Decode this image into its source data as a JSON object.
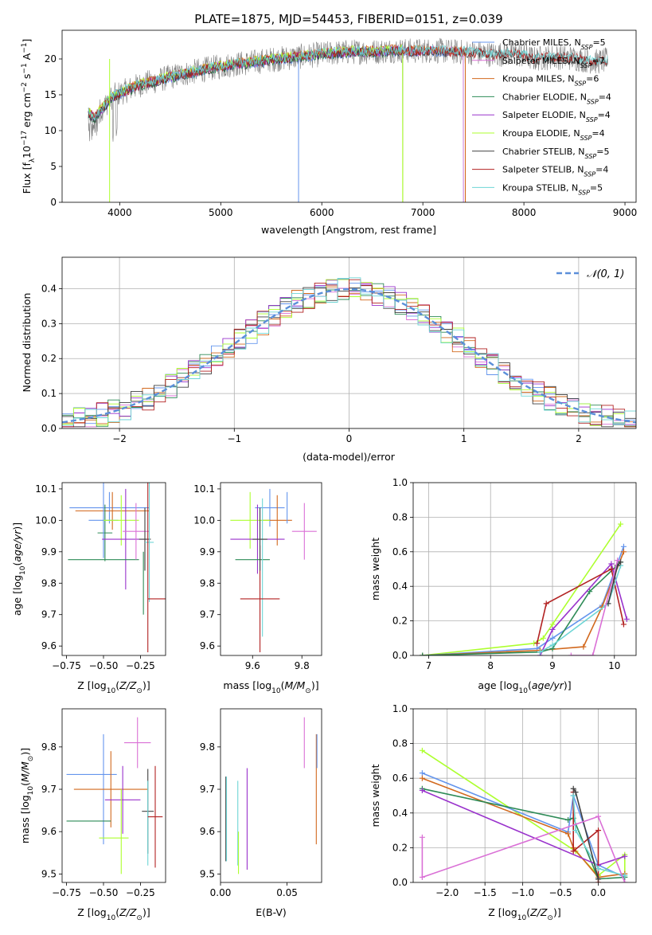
{
  "page": {
    "title": "PLATE=1875, MJD=54453, FIBERID=0151, z=0.039"
  },
  "chart_data": [
    {
      "id": "spectrum",
      "type": "line",
      "title": "PLATE=1875, MJD=54453, FIBERID=0151, z=0.039",
      "xlabel": "wavelength [Angstrom, rest frame]",
      "ylabel": "Flux [f_λ 10^-17 erg cm^-2 s^-1 A^-1]",
      "xlim": [
        3430,
        9110
      ],
      "ylim": [
        0,
        24
      ],
      "xticks": [
        4000,
        5000,
        6000,
        7000,
        8000,
        9000
      ],
      "yticks": [
        0,
        5,
        10,
        15,
        20
      ],
      "observed": {
        "x": [
          3690,
          3750,
          3850,
          3930,
          4000,
          4100,
          4200,
          4350,
          4500,
          4700,
          4900,
          5100,
          5300,
          5500,
          5700,
          5900,
          6100,
          6300,
          6500,
          6700,
          6900,
          7100,
          7300,
          7500,
          7700,
          7900,
          8100,
          8300,
          8500,
          8700,
          8830
        ],
        "y": [
          12.5,
          11.8,
          13.5,
          14.8,
          15.2,
          15.8,
          16.4,
          16.9,
          17.5,
          18.1,
          18.7,
          19.2,
          19.5,
          19.9,
          20.2,
          20.5,
          20.8,
          21.0,
          21.0,
          21.2,
          21.1,
          21.2,
          21.0,
          20.9,
          20.6,
          20.8,
          20.0,
          20.3,
          20.1,
          19.6,
          19.8
        ]
      },
      "model_x": [
        3690,
        3750,
        3850,
        3930,
        4000,
        4100,
        4200,
        4350,
        4500,
        4700,
        4900,
        5100,
        5300,
        5500,
        5700,
        5900,
        6100,
        6300,
        6500,
        6700,
        6900,
        7100,
        7300,
        7500
      ],
      "series": [
        {
          "name": "Chabrier MILES, N_SSP=5",
          "color": "#6495ED",
          "xmax": 7400
        },
        {
          "name": "Salpeter MILES, N_SSP=7",
          "color": "#DA70D6",
          "xmax": 7400
        },
        {
          "name": "Kroupa MILES, N_SSP=6",
          "color": "#D2691E",
          "xmax": 7420
        },
        {
          "name": "Chabrier ELODIE, N_SSP=4",
          "color": "#2E8B57",
          "xmax": 6800
        },
        {
          "name": "Salpeter ELODIE, N_SSP=4",
          "color": "#9932CC",
          "xmax": 6800
        },
        {
          "name": "Kroupa ELODIE, N_SSP=4",
          "color": "#ADFF2F",
          "xmax": 6800
        },
        {
          "name": "Chabrier STELIB, N_SSP=5",
          "color": "#404040",
          "xmax": 8830
        },
        {
          "name": "Salpeter STELIB, N_SSP=4",
          "color": "#B22222",
          "xmax": 8830
        },
        {
          "name": "Kroupa STELIB, N_SSP=5",
          "color": "#6ED5D5",
          "xmax": 8830
        }
      ]
    },
    {
      "id": "residuals",
      "type": "histogram",
      "xlabel": "(data-model)/error",
      "ylabel": "Normed distribution",
      "xlim": [
        -2.5,
        2.5
      ],
      "ylim": [
        0,
        0.49
      ],
      "xticks": [
        -2,
        -1,
        0,
        1,
        2
      ],
      "yticks": [
        0.0,
        0.1,
        0.2,
        0.3,
        0.4
      ],
      "legend": {
        "label": "N(0,1)",
        "position": "top-right",
        "color": "#5B8FD9"
      },
      "grid": true
    },
    {
      "id": "age-vs-Z",
      "type": "errorbar",
      "xlabel": "Z [log10(Z/Z⊙)]",
      "ylabel": "age  [log10(age/yr)]",
      "xlim": [
        -0.78,
        -0.08
      ],
      "ylim": [
        9.57,
        10.12
      ],
      "xticks": [
        -0.75,
        -0.5,
        -0.25
      ],
      "yticks": [
        9.6,
        9.7,
        9.8,
        9.9,
        10.0,
        10.1
      ],
      "points": [
        {
          "x": -0.46,
          "y": 10.04,
          "xerr": 0.27,
          "yerr": 0.05,
          "color": "#6495ED"
        },
        {
          "x": -0.44,
          "y": 10.03,
          "xerr": 0.25,
          "yerr": 0.06,
          "color": "#D2691E"
        },
        {
          "x": -0.49,
          "y": 9.96,
          "xerr": 0.05,
          "yerr": 0.09,
          "color": "#2E8B57"
        },
        {
          "x": -0.5,
          "y": 10.0,
          "xerr": 0.1,
          "yerr": 0.12,
          "color": "#6495ED"
        },
        {
          "x": -0.38,
          "y": 10.0,
          "xerr": 0.12,
          "yerr": 0.08,
          "color": "#ADFF2F"
        },
        {
          "x": -0.35,
          "y": 9.94,
          "xerr": 0.16,
          "yerr": 0.16,
          "color": "#9932CC"
        },
        {
          "x": -0.5,
          "y": 9.875,
          "xerr": 0.24,
          "yerr": 0.0,
          "color": "#2E8B57"
        },
        {
          "x": -0.28,
          "y": 9.965,
          "xerr": 0.09,
          "yerr": 0.09,
          "color": "#DA70D6"
        },
        {
          "x": -0.22,
          "y": 9.94,
          "xerr": 0.04,
          "yerr": 0.1,
          "color": "#404040"
        },
        {
          "x": -0.19,
          "y": 9.93,
          "xerr": 0.03,
          "yerr": 0.19,
          "color": "#6ED5D5"
        },
        {
          "x": -0.2,
          "y": 9.85,
          "xerr": 0.0,
          "yerr": 0.27,
          "color": "#B22222"
        },
        {
          "x": -0.14,
          "y": 9.75,
          "xerr": 0.06,
          "yerr": 0.0,
          "color": "#B22222"
        },
        {
          "x": -0.23,
          "y": 9.8,
          "xerr": 0.0,
          "yerr": 0.1,
          "color": "#2E8B57"
        }
      ]
    },
    {
      "id": "age-vs-mass",
      "type": "errorbar",
      "xlabel": "mass [log10(M/M⊙)]",
      "ylabel": "",
      "xlim": [
        9.47,
        9.88
      ],
      "ylim": [
        9.57,
        10.12
      ],
      "xticks": [
        9.6,
        9.8
      ],
      "yticks": [
        9.6,
        9.7,
        9.8,
        9.9,
        10.0,
        10.1
      ],
      "points": [
        {
          "x": 9.67,
          "y": 10.04,
          "xerr": 0.06,
          "yerr": 0.06,
          "color": "#6495ED"
        },
        {
          "x": 9.7,
          "y": 10.0,
          "xerr": 0.06,
          "yerr": 0.08,
          "color": "#D2691E"
        },
        {
          "x": 9.59,
          "y": 10.0,
          "xerr": 0.08,
          "yerr": 0.09,
          "color": "#ADFF2F"
        },
        {
          "x": 9.62,
          "y": 9.94,
          "xerr": 0.11,
          "yerr": 0.11,
          "color": "#9932CC"
        },
        {
          "x": 9.6,
          "y": 9.875,
          "xerr": 0.07,
          "yerr": 0.0,
          "color": "#2E8B57"
        },
        {
          "x": 9.81,
          "y": 9.965,
          "xerr": 0.05,
          "yerr": 0.09,
          "color": "#DA70D6"
        },
        {
          "x": 9.74,
          "y": 10.04,
          "xerr": 0.0,
          "yerr": 0.05,
          "color": "#6495ED"
        },
        {
          "x": 9.64,
          "y": 9.85,
          "xerr": 0.0,
          "yerr": 0.22,
          "color": "#6ED5D5"
        },
        {
          "x": 9.63,
          "y": 9.75,
          "xerr": 0.08,
          "yerr": 0.17,
          "color": "#B22222"
        },
        {
          "x": 9.63,
          "y": 9.94,
          "xerr": 0.03,
          "yerr": 0.1,
          "color": "#404040"
        }
      ]
    },
    {
      "id": "massweight-vs-age",
      "type": "line",
      "xlabel": "age  [log10(age/yr)]",
      "ylabel": "mass weight",
      "xlim": [
        6.75,
        10.35
      ],
      "ylim": [
        0.0,
        1.0
      ],
      "xticks": [
        7,
        8,
        9,
        10
      ],
      "yticks": [
        0.0,
        0.2,
        0.4,
        0.6,
        0.8,
        1.0
      ],
      "grid": true,
      "series": [
        {
          "color": "#ADFF2F",
          "x": [
            6.9,
            8.7,
            8.85,
            9.0,
            10.1
          ],
          "y": [
            0.0,
            0.07,
            0.1,
            0.18,
            0.76
          ]
        },
        {
          "color": "#6495ED",
          "x": [
            6.9,
            8.75,
            9.0,
            9.8,
            10.15
          ],
          "y": [
            0.0,
            0.04,
            0.1,
            0.29,
            0.63
          ]
        },
        {
          "color": "#D2691E",
          "x": [
            6.9,
            8.8,
            9.5,
            9.8,
            10.15
          ],
          "y": [
            0.0,
            0.03,
            0.05,
            0.28,
            0.6
          ]
        },
        {
          "color": "#2E8B57",
          "x": [
            6.9,
            8.8,
            9.0,
            9.6,
            10.1
          ],
          "y": [
            0.0,
            0.02,
            0.04,
            0.37,
            0.54
          ]
        },
        {
          "color": "#9932CC",
          "x": [
            8.8,
            9.0,
            9.95,
            10.2
          ],
          "y": [
            0.0,
            0.15,
            0.53,
            0.21
          ]
        },
        {
          "color": "#B22222",
          "x": [
            8.75,
            8.9,
            9.95,
            10.15
          ],
          "y": [
            0.07,
            0.3,
            0.5,
            0.18
          ]
        },
        {
          "color": "#6ED5D5",
          "x": [
            8.8,
            9.0,
            9.9,
            10.1
          ],
          "y": [
            0.02,
            0.06,
            0.3,
            0.52
          ]
        },
        {
          "color": "#404040",
          "x": [
            9.9,
            10.05,
            10.1
          ],
          "y": [
            0.3,
            0.52,
            0.54
          ]
        },
        {
          "color": "#DA70D6",
          "x": [
            9.3,
            9.65,
            10.05
          ],
          "y": [
            0.0,
            0.0,
            0.55
          ]
        }
      ]
    },
    {
      "id": "mass-vs-Z",
      "type": "errorbar",
      "xlabel": "Z [log10(Z/Z⊙)]",
      "ylabel": "mass [log10(M/M⊙)]",
      "xlim": [
        -0.78,
        -0.08
      ],
      "ylim": [
        9.48,
        9.89
      ],
      "xticks": [
        -0.75,
        -0.5,
        -0.25
      ],
      "yticks": [
        9.5,
        9.6,
        9.7,
        9.8
      ],
      "points": [
        {
          "x": -0.5,
          "y": 9.7,
          "xerr": 0.0,
          "yerr": 0.13,
          "color": "#6495ED"
        },
        {
          "x": -0.58,
          "y": 9.735,
          "xerr": 0.17,
          "yerr": 0.0,
          "color": "#6495ED"
        },
        {
          "x": -0.45,
          "y": 9.7,
          "xerr": 0.25,
          "yerr": 0.09,
          "color": "#D2691E"
        },
        {
          "x": -0.6,
          "y": 9.625,
          "xerr": 0.15,
          "yerr": 0.0,
          "color": "#2E8B57"
        },
        {
          "x": -0.37,
          "y": 9.675,
          "xerr": 0.12,
          "yerr": 0.08,
          "color": "#9932CC"
        },
        {
          "x": -0.43,
          "y": 9.585,
          "xerr": 0.1,
          "yerr": 0.0,
          "color": "#ADFF2F"
        },
        {
          "x": -0.38,
          "y": 9.6,
          "xerr": 0.0,
          "yerr": 0.1,
          "color": "#ADFF2F"
        },
        {
          "x": -0.27,
          "y": 9.81,
          "xerr": 0.09,
          "yerr": 0.06,
          "color": "#DA70D6"
        },
        {
          "x": -0.2,
          "y": 9.648,
          "xerr": 0.04,
          "yerr": 0.1,
          "color": "#404040"
        },
        {
          "x": -0.2,
          "y": 9.62,
          "xerr": 0.0,
          "yerr": 0.1,
          "color": "#6ED5D5"
        },
        {
          "x": -0.15,
          "y": 9.635,
          "xerr": 0.05,
          "yerr": 0.12,
          "color": "#B22222"
        }
      ]
    },
    {
      "id": "mass-vs-EBV",
      "type": "errorbar",
      "xlabel": "E(B-V)",
      "ylabel": "",
      "xlim": [
        0.0,
        0.076
      ],
      "ylim": [
        9.48,
        9.89
      ],
      "xticks": [
        0.0,
        0.05
      ],
      "yticks": [
        9.5,
        9.6,
        9.7,
        9.8
      ],
      "points": [
        {
          "x": 0.004,
          "y": 9.63,
          "xerr": 0.0,
          "yerr": 0.1,
          "color": "#404040"
        },
        {
          "x": 0.0045,
          "y": 9.63,
          "xerr": 0.0,
          "yerr": 0.1,
          "color": "#6ED5D5"
        },
        {
          "x": 0.013,
          "y": 9.62,
          "xerr": 0.0,
          "yerr": 0.1,
          "color": "#6ED5D5"
        },
        {
          "x": 0.0135,
          "y": 9.55,
          "xerr": 0.0,
          "yerr": 0.05,
          "color": "#ADFF2F"
        },
        {
          "x": 0.02,
          "y": 9.63,
          "xerr": 0.0,
          "yerr": 0.12,
          "color": "#9932CC"
        },
        {
          "x": 0.063,
          "y": 9.81,
          "xerr": 0.0,
          "yerr": 0.06,
          "color": "#DA70D6"
        },
        {
          "x": 0.072,
          "y": 9.7,
          "xerr": 0.0,
          "yerr": 0.13,
          "color": "#D2691E"
        },
        {
          "x": 0.0725,
          "y": 9.79,
          "xerr": 0.0,
          "yerr": 0.04,
          "color": "#6495ED"
        }
      ]
    },
    {
      "id": "massweight-vs-Z",
      "type": "line",
      "xlabel": "Z [log10(Z/Z⊙)]",
      "ylabel": "mass weight",
      "xlim": [
        -2.45,
        0.5
      ],
      "ylim": [
        0.0,
        1.0
      ],
      "xticks": [
        -2.0,
        -1.5,
        -1.0,
        -0.5,
        0.0
      ],
      "yticks": [
        0.0,
        0.2,
        0.4,
        0.6,
        0.8,
        1.0
      ],
      "grid": true,
      "series": [
        {
          "color": "#ADFF2F",
          "x": [
            -2.33,
            -0.3,
            0.0,
            0.35,
            0.35
          ],
          "y": [
            0.76,
            0.18,
            0.04,
            0.16,
            0.03
          ]
        },
        {
          "color": "#6495ED",
          "x": [
            -2.33,
            -0.4,
            -0.33,
            0.0,
            0.35
          ],
          "y": [
            0.63,
            0.29,
            0.5,
            0.1,
            0.03
          ]
        },
        {
          "color": "#D2691E",
          "x": [
            -2.33,
            -0.4,
            -0.33,
            0.0,
            0.35
          ],
          "y": [
            0.6,
            0.28,
            0.2,
            0.03,
            0.05
          ]
        },
        {
          "color": "#2E8B57",
          "x": [
            -2.33,
            -0.4,
            -0.33,
            0.0,
            0.35
          ],
          "y": [
            0.54,
            0.36,
            0.37,
            0.02,
            0.03
          ]
        },
        {
          "color": "#9932CC",
          "x": [
            -2.33,
            0.0,
            0.35
          ],
          "y": [
            0.53,
            0.1,
            0.15
          ]
        },
        {
          "color": "#B22222",
          "x": [
            -0.33,
            -0.33,
            0.0,
            0.0
          ],
          "y": [
            0.52,
            0.18,
            0.3,
            0.0
          ]
        },
        {
          "color": "#6ED5D5",
          "x": [
            -0.33,
            -0.3,
            0.0,
            0.35
          ],
          "y": [
            0.5,
            0.3,
            0.08,
            0.04
          ]
        },
        {
          "color": "#404040",
          "x": [
            -0.33,
            -0.3,
            0.0
          ],
          "y": [
            0.54,
            0.52,
            0.02
          ]
        },
        {
          "color": "#DA70D6",
          "x": [
            -2.33,
            -2.33,
            0.0,
            0.35
          ],
          "y": [
            0.26,
            0.03,
            0.38,
            0.0
          ]
        }
      ]
    }
  ]
}
